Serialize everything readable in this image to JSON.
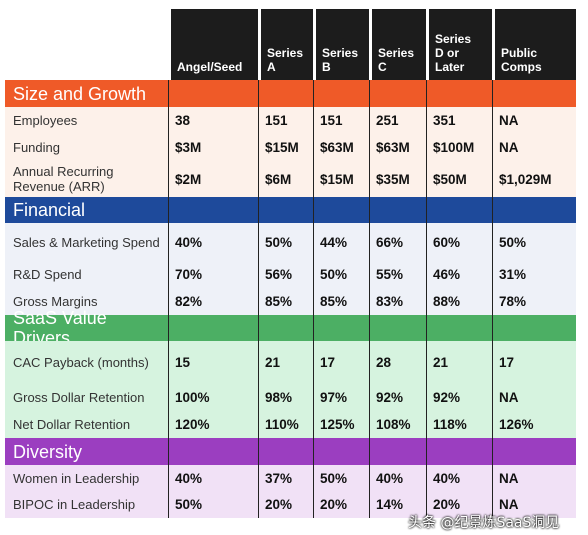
{
  "columns": [
    "Angel/Seed",
    "Series\nA",
    "Series\nB",
    "Series\nC",
    "Series\nD or\nLater",
    "Public\nComps"
  ],
  "colors": {
    "header": "#1c1c1c",
    "size_growth": "#ef5a28",
    "size_growth_row": "#fdf1ea",
    "financial": "#1e4a9b",
    "financial_row": "#eef1f8",
    "saas": "#4caf64",
    "saas_row": "#d6f3df",
    "diversity": "#9b3ec0",
    "diversity_row": "#f1e1f6"
  },
  "sections": [
    {
      "title": "Size and Growth",
      "rows": [
        {
          "label": "Employees",
          "values": [
            "38",
            "151",
            "151",
            "251",
            "351",
            "NA"
          ]
        },
        {
          "label": "Funding",
          "values": [
            "$3M",
            "$15M",
            "$63M",
            "$63M",
            "$100M",
            "NA"
          ]
        },
        {
          "label": "Annual Recurring Revenue (ARR)",
          "values": [
            "$2M",
            "$6M",
            "$15M",
            "$35M",
            "$50M",
            "$1,029M"
          ]
        }
      ]
    },
    {
      "title": "Financial",
      "rows": [
        {
          "label": "Sales & Marketing Spend",
          "values": [
            "40%",
            "50%",
            "44%",
            "66%",
            "60%",
            "50%"
          ]
        },
        {
          "label": "R&D Spend",
          "values": [
            "70%",
            "56%",
            "50%",
            "55%",
            "46%",
            "31%"
          ]
        },
        {
          "label": "Gross Margins",
          "values": [
            "82%",
            "85%",
            "85%",
            "83%",
            "88%",
            "78%"
          ]
        }
      ]
    },
    {
      "title": "SaaS Value Drivers",
      "rows": [
        {
          "label": "CAC Payback (months)",
          "values": [
            "15",
            "21",
            "17",
            "28",
            "21",
            "17"
          ]
        },
        {
          "label": "Gross Dollar Retention",
          "values": [
            "100%",
            "98%",
            "97%",
            "92%",
            "92%",
            "NA"
          ]
        },
        {
          "label": "Net Dollar Retention",
          "values": [
            "120%",
            "110%",
            "125%",
            "108%",
            "118%",
            "126%"
          ]
        }
      ]
    },
    {
      "title": "Diversity",
      "rows": [
        {
          "label": "Women in Leadership",
          "values": [
            "40%",
            "37%",
            "50%",
            "40%",
            "40%",
            "NA"
          ]
        },
        {
          "label": "BIPOC in Leadership",
          "values": [
            "50%",
            "20%",
            "20%",
            "14%",
            "20%",
            "NA"
          ]
        }
      ]
    }
  ],
  "watermark": "头条 @纪景炼SaaS洞见"
}
